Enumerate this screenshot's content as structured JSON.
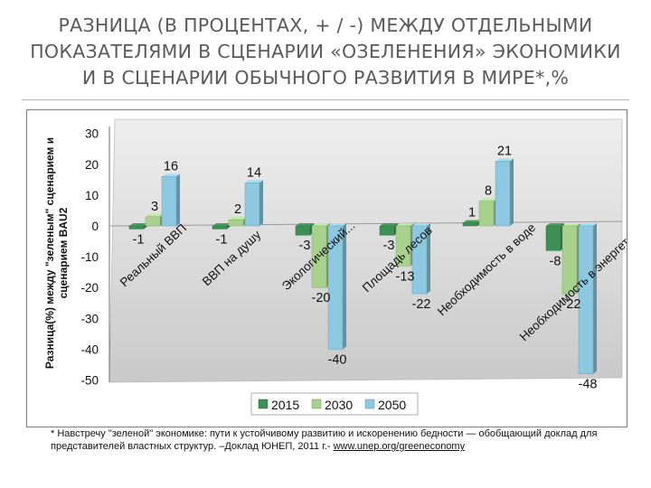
{
  "title_lines": [
    "РАЗНИЦА (В ПРОЦЕНТАХ, + / -) МЕЖДУ ОТДЕЛЬНЫМИ",
    "ПОКАЗАТЕЛЯМИ В СЦЕНАРИИ «ОЗЕЛЕНЕНИЯ» ЭКОНОМИКИ",
    "И В СЦЕНАРИИ ОБЫЧНОГО РАЗВИТИЯ В МИРЕ*,%"
  ],
  "chart_data": {
    "type": "bar",
    "ylabel_lines": [
      "Разница(%) между \"зеленым\" сценарием и",
      "сценарием BAU2"
    ],
    "ylim": [
      -50,
      30
    ],
    "yticks": [
      "-50",
      "-40",
      "-30",
      "-20",
      "-10",
      "0",
      "10",
      "20",
      "30"
    ],
    "categories": [
      "Реальный ВВП",
      "ВВП на душу",
      "Экологический...",
      "Площадь лесов",
      "Необходимость в воде",
      "Необходимость в энергетике"
    ],
    "series": [
      {
        "name": "2015",
        "color": "#3e8f55",
        "values": [
          -1,
          -1,
          -3,
          -3,
          1,
          -8
        ]
      },
      {
        "name": "2030",
        "color": "#a9d18e",
        "values": [
          3,
          2,
          -20,
          -13,
          8,
          -22
        ]
      },
      {
        "name": "2050",
        "color": "#8cc8e0",
        "values": [
          16,
          14,
          -40,
          -22,
          21,
          -48
        ]
      }
    ],
    "data_labels": [
      [
        "-1",
        "3",
        "16"
      ],
      [
        "-1",
        "2",
        "14"
      ],
      [
        "-3",
        "-20",
        "-40"
      ],
      [
        "-3",
        "-13",
        "-22"
      ],
      [
        "1",
        "8",
        "21"
      ],
      [
        "-8",
        "-22",
        "-48"
      ]
    ],
    "legend": {
      "placement": "bottom",
      "entries": [
        "2015",
        "2030",
        "2050"
      ]
    },
    "grid": false
  },
  "footnote": {
    "text": "* Навстречу \"зеленой\" экономике: пути к устойчивому развитию и искоренению бедности — обобщающий доклад для представителей властных структур. –Доклад ЮНЕП, 2011 г.- ",
    "link": "www.unep.org/greeneconomy"
  }
}
